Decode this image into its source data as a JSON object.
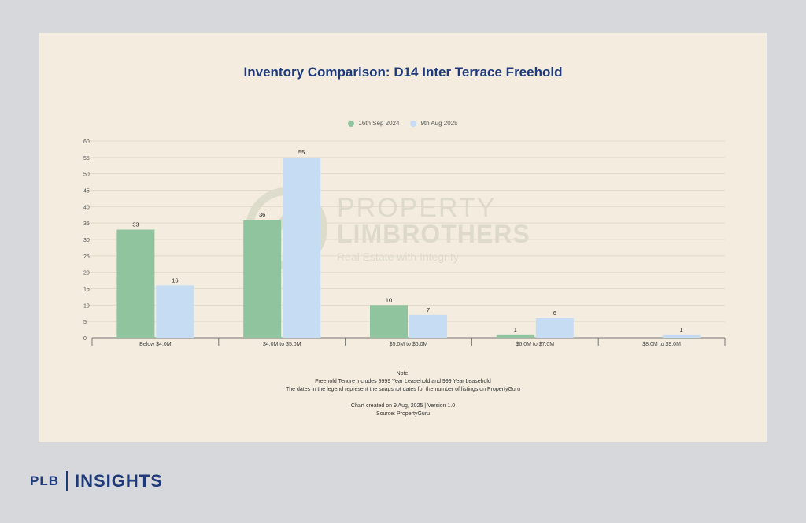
{
  "chart_data": {
    "type": "bar",
    "title": "Inventory Comparison: D14 Inter Terrace Freehold",
    "categories": [
      "Below $4.0M",
      "$4.0M to $5.0M",
      "$5.0M to $6.0M",
      "$6.0M to $7.0M",
      "$8.0M to $9.0M"
    ],
    "series": [
      {
        "name": "16th Sep 2024",
        "color": "#8fc49f",
        "values": [
          33,
          36,
          10,
          1,
          null
        ],
        "labels": [
          "33",
          "36",
          "10",
          "1",
          ""
        ]
      },
      {
        "name": "9th Aug 2025",
        "color": "#c5dcf3",
        "values": [
          16,
          55,
          7,
          6,
          1
        ],
        "labels": [
          "16",
          "55",
          "7",
          "6",
          "1"
        ]
      }
    ],
    "ylim": [
      0,
      60
    ],
    "yticks": [
      0,
      5,
      10,
      15,
      20,
      25,
      30,
      35,
      40,
      45,
      50,
      55,
      60
    ],
    "grid": true,
    "legend_position": "top-center"
  },
  "notes": {
    "heading": "Note:",
    "line1": "Freehold Tenure includes 9999 Year Leasehold and 999 Year Leasehold",
    "line2": "The dates in the legend represent the snapshot dates for the number of listings on PropertyGuru",
    "created": "Chart created on 9 Aug, 2025 | Version 1.0",
    "source": "Source: PropertyGuru"
  },
  "watermark": {
    "line1": "PROPERTY",
    "line2": "LIMBROTHERS",
    "line3": "Real Estate with Integrity"
  },
  "footer": {
    "brand": "PLB",
    "section": "INSIGHTS"
  }
}
